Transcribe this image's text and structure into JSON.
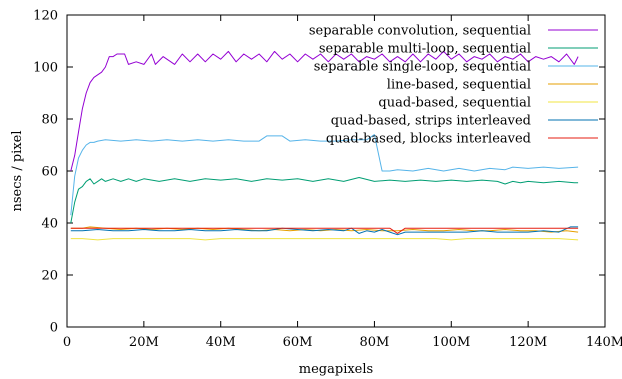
{
  "chart_data": {
    "type": "line",
    "title": "",
    "xlabel": "megapixels",
    "ylabel": "nsecs / pixel",
    "xlim": [
      0,
      140
    ],
    "ylim": [
      0,
      120
    ],
    "x_ticks": [
      0,
      20,
      40,
      60,
      80,
      100,
      120,
      140
    ],
    "x_tick_labels": [
      "0",
      "20M",
      "40M",
      "60M",
      "80M",
      "100M",
      "120M",
      "140M"
    ],
    "y_ticks": [
      0,
      20,
      40,
      60,
      80,
      100,
      120
    ],
    "y_tick_labels": [
      "0",
      "20",
      "40",
      "60",
      "80",
      "100",
      "120"
    ],
    "x_unit_note": "x values in millions of pixels",
    "grid": false,
    "legend_placement": "top-right",
    "series": [
      {
        "name": "separable convolution, sequential",
        "color": "#9400d3",
        "points": [
          [
            1,
            60
          ],
          [
            2,
            66
          ],
          [
            3,
            75
          ],
          [
            4,
            84
          ],
          [
            5,
            90
          ],
          [
            6,
            94
          ],
          [
            7,
            96
          ],
          [
            8,
            97
          ],
          [
            9,
            98
          ],
          [
            10,
            100
          ],
          [
            11,
            104
          ],
          [
            12,
            104
          ],
          [
            13,
            105
          ],
          [
            15,
            105
          ],
          [
            16,
            101
          ],
          [
            18,
            102
          ],
          [
            20,
            101
          ],
          [
            22,
            105
          ],
          [
            23,
            101
          ],
          [
            25,
            104
          ],
          [
            27,
            102
          ],
          [
            28,
            101
          ],
          [
            30,
            105
          ],
          [
            32,
            102
          ],
          [
            34,
            105
          ],
          [
            36,
            102
          ],
          [
            38,
            105
          ],
          [
            40,
            103
          ],
          [
            42,
            106
          ],
          [
            44,
            102
          ],
          [
            46,
            105
          ],
          [
            48,
            103
          ],
          [
            50,
            105
          ],
          [
            52,
            102
          ],
          [
            54,
            106
          ],
          [
            56,
            103
          ],
          [
            58,
            105
          ],
          [
            60,
            102
          ],
          [
            62,
            105
          ],
          [
            64,
            103
          ],
          [
            66,
            105
          ],
          [
            68,
            102
          ],
          [
            70,
            105
          ],
          [
            72,
            103
          ],
          [
            74,
            105
          ],
          [
            76,
            102
          ],
          [
            78,
            104
          ],
          [
            80,
            103
          ],
          [
            82,
            105
          ],
          [
            84,
            102
          ],
          [
            86,
            104
          ],
          [
            88,
            102
          ],
          [
            90,
            105
          ],
          [
            92,
            102
          ],
          [
            94,
            105
          ],
          [
            96,
            103
          ],
          [
            98,
            106
          ],
          [
            100,
            103
          ],
          [
            102,
            105
          ],
          [
            104,
            102
          ],
          [
            106,
            104
          ],
          [
            108,
            103
          ],
          [
            110,
            105
          ],
          [
            112,
            102
          ],
          [
            114,
            104
          ],
          [
            116,
            103
          ],
          [
            118,
            105
          ],
          [
            120,
            102
          ],
          [
            122,
            104
          ],
          [
            124,
            103
          ],
          [
            126,
            104
          ],
          [
            128,
            102
          ],
          [
            130,
            105
          ],
          [
            132,
            101
          ],
          [
            133,
            104
          ]
        ]
      },
      {
        "name": "separable multi-loop, sequential",
        "color": "#009e73",
        "points": [
          [
            1,
            40
          ],
          [
            2,
            48
          ],
          [
            3,
            53
          ],
          [
            4,
            54
          ],
          [
            5,
            56
          ],
          [
            6,
            57
          ],
          [
            7,
            55
          ],
          [
            8,
            56
          ],
          [
            9,
            57
          ],
          [
            10,
            56
          ],
          [
            12,
            57
          ],
          [
            14,
            56
          ],
          [
            16,
            57
          ],
          [
            18,
            56
          ],
          [
            20,
            57
          ],
          [
            24,
            56
          ],
          [
            28,
            57
          ],
          [
            32,
            56
          ],
          [
            36,
            57
          ],
          [
            40,
            56.5
          ],
          [
            44,
            57
          ],
          [
            48,
            56
          ],
          [
            52,
            57
          ],
          [
            56,
            56.5
          ],
          [
            60,
            57
          ],
          [
            64,
            56
          ],
          [
            68,
            57
          ],
          [
            72,
            56
          ],
          [
            76,
            57.5
          ],
          [
            80,
            56
          ],
          [
            84,
            56.5
          ],
          [
            88,
            56
          ],
          [
            92,
            56.5
          ],
          [
            96,
            56
          ],
          [
            100,
            56.5
          ],
          [
            104,
            56
          ],
          [
            108,
            56.5
          ],
          [
            112,
            56
          ],
          [
            114,
            55
          ],
          [
            116,
            56
          ],
          [
            118,
            55.5
          ],
          [
            120,
            56
          ],
          [
            124,
            55.5
          ],
          [
            128,
            56
          ],
          [
            132,
            55.5
          ],
          [
            133,
            55.5
          ]
        ]
      },
      {
        "name": "separable single-loop, sequential",
        "color": "#56b4e9",
        "points": [
          [
            1,
            43
          ],
          [
            2,
            58
          ],
          [
            3,
            65
          ],
          [
            4,
            68
          ],
          [
            5,
            70
          ],
          [
            6,
            71
          ],
          [
            7,
            71
          ],
          [
            8,
            71.5
          ],
          [
            10,
            72
          ],
          [
            14,
            71.5
          ],
          [
            18,
            72
          ],
          [
            22,
            71.5
          ],
          [
            26,
            72
          ],
          [
            30,
            71.5
          ],
          [
            34,
            72
          ],
          [
            38,
            71.5
          ],
          [
            42,
            72
          ],
          [
            46,
            71.5
          ],
          [
            50,
            71.5
          ],
          [
            52,
            73.5
          ],
          [
            56,
            73.5
          ],
          [
            58,
            71.5
          ],
          [
            62,
            72
          ],
          [
            66,
            71.5
          ],
          [
            70,
            71.5
          ],
          [
            74,
            72
          ],
          [
            78,
            72
          ],
          [
            80,
            74
          ],
          [
            82,
            60
          ],
          [
            84,
            60
          ],
          [
            86,
            60.5
          ],
          [
            90,
            60
          ],
          [
            94,
            61
          ],
          [
            98,
            60
          ],
          [
            102,
            61
          ],
          [
            106,
            60
          ],
          [
            110,
            61
          ],
          [
            114,
            60.5
          ],
          [
            116,
            61.5
          ],
          [
            120,
            61
          ],
          [
            124,
            61.5
          ],
          [
            128,
            61
          ],
          [
            133,
            61.5
          ]
        ]
      },
      {
        "name": "line-based, sequential",
        "color": "#e69f00",
        "points": [
          [
            1,
            38
          ],
          [
            4,
            38
          ],
          [
            6,
            38.5
          ],
          [
            10,
            38
          ],
          [
            14,
            37.5
          ],
          [
            18,
            38
          ],
          [
            22,
            37.5
          ],
          [
            26,
            38
          ],
          [
            30,
            37.5
          ],
          [
            34,
            38
          ],
          [
            38,
            37.5
          ],
          [
            42,
            38
          ],
          [
            46,
            37.5
          ],
          [
            50,
            37
          ],
          [
            54,
            37.5
          ],
          [
            58,
            37
          ],
          [
            62,
            37.5
          ],
          [
            66,
            37
          ],
          [
            70,
            37.5
          ],
          [
            74,
            37
          ],
          [
            78,
            37.5
          ],
          [
            82,
            37
          ],
          [
            86,
            37
          ],
          [
            90,
            37.5
          ],
          [
            94,
            37
          ],
          [
            98,
            37
          ],
          [
            102,
            37.5
          ],
          [
            106,
            37
          ],
          [
            110,
            37
          ],
          [
            114,
            37.5
          ],
          [
            118,
            37
          ],
          [
            122,
            37
          ],
          [
            126,
            36.5
          ],
          [
            130,
            37
          ],
          [
            133,
            36.5
          ]
        ]
      },
      {
        "name": "quad-based, sequential",
        "color": "#f0e442",
        "points": [
          [
            1,
            34
          ],
          [
            4,
            34
          ],
          [
            8,
            33.5
          ],
          [
            12,
            34
          ],
          [
            16,
            34
          ],
          [
            20,
            34
          ],
          [
            24,
            34
          ],
          [
            28,
            34
          ],
          [
            32,
            34
          ],
          [
            36,
            33.5
          ],
          [
            40,
            34
          ],
          [
            44,
            34
          ],
          [
            48,
            34
          ],
          [
            52,
            34
          ],
          [
            56,
            34
          ],
          [
            60,
            34
          ],
          [
            64,
            34
          ],
          [
            68,
            34
          ],
          [
            72,
            34
          ],
          [
            76,
            34
          ],
          [
            80,
            34
          ],
          [
            84,
            34
          ],
          [
            88,
            34
          ],
          [
            92,
            34
          ],
          [
            96,
            34
          ],
          [
            100,
            33.5
          ],
          [
            104,
            34
          ],
          [
            108,
            34
          ],
          [
            112,
            34
          ],
          [
            116,
            34
          ],
          [
            120,
            34
          ],
          [
            124,
            34
          ],
          [
            128,
            34
          ],
          [
            133,
            33.5
          ]
        ]
      },
      {
        "name": "quad-based, strips interleaved",
        "color": "#0072b2",
        "points": [
          [
            1,
            37
          ],
          [
            4,
            37
          ],
          [
            8,
            37.5
          ],
          [
            12,
            37
          ],
          [
            16,
            37
          ],
          [
            20,
            37.5
          ],
          [
            24,
            37
          ],
          [
            28,
            37
          ],
          [
            32,
            37.5
          ],
          [
            36,
            37
          ],
          [
            40,
            37
          ],
          [
            44,
            37.5
          ],
          [
            48,
            37
          ],
          [
            52,
            37
          ],
          [
            56,
            38
          ],
          [
            60,
            37.5
          ],
          [
            64,
            37
          ],
          [
            68,
            37.5
          ],
          [
            72,
            37
          ],
          [
            74,
            38
          ],
          [
            76,
            36
          ],
          [
            78,
            37
          ],
          [
            80,
            36.5
          ],
          [
            82,
            37.5
          ],
          [
            84,
            36.5
          ],
          [
            86,
            35.5
          ],
          [
            88,
            36.5
          ],
          [
            92,
            36.5
          ],
          [
            96,
            36.5
          ],
          [
            100,
            36.5
          ],
          [
            104,
            36.5
          ],
          [
            108,
            37
          ],
          [
            112,
            36.5
          ],
          [
            116,
            36.5
          ],
          [
            120,
            36.5
          ],
          [
            124,
            37
          ],
          [
            128,
            36.5
          ],
          [
            131,
            38.5
          ],
          [
            133,
            38.5
          ]
        ]
      },
      {
        "name": "quad-based, blocks interleaved",
        "color": "#e51e10",
        "points": [
          [
            1,
            38
          ],
          [
            4,
            38
          ],
          [
            8,
            38
          ],
          [
            12,
            38
          ],
          [
            16,
            38
          ],
          [
            20,
            38
          ],
          [
            24,
            38
          ],
          [
            28,
            38
          ],
          [
            32,
            38
          ],
          [
            36,
            38
          ],
          [
            40,
            38
          ],
          [
            44,
            38
          ],
          [
            48,
            38
          ],
          [
            52,
            38
          ],
          [
            56,
            38
          ],
          [
            60,
            38
          ],
          [
            64,
            38
          ],
          [
            68,
            38
          ],
          [
            72,
            38
          ],
          [
            76,
            38
          ],
          [
            80,
            38
          ],
          [
            84,
            38
          ],
          [
            86,
            36
          ],
          [
            88,
            38
          ],
          [
            92,
            38
          ],
          [
            96,
            38
          ],
          [
            100,
            38
          ],
          [
            104,
            38
          ],
          [
            108,
            38
          ],
          [
            112,
            38
          ],
          [
            116,
            38
          ],
          [
            120,
            38
          ],
          [
            124,
            38
          ],
          [
            128,
            38
          ],
          [
            133,
            38
          ]
        ]
      }
    ]
  }
}
